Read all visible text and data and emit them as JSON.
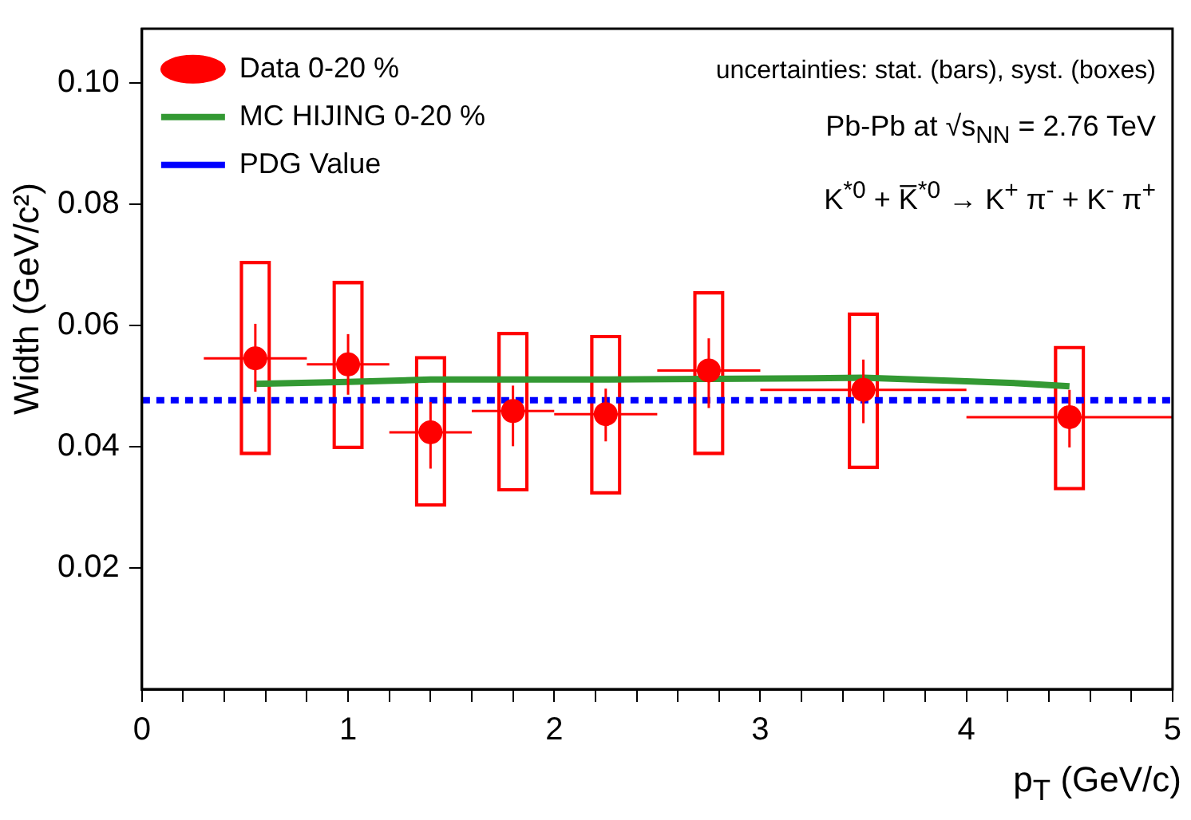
{
  "chart_data": {
    "type": "scatter",
    "xlabel": "p$_{T}$ (GeV/c)",
    "ylabel": "Width (GeV/c²)",
    "annotations": [
      "uncertainties: stat. (bars), syst. (boxes)",
      "Pb-Pb at √s$_{NN}$ = 2.76 TeV",
      "K$^{*0}$ + K̅$^{*0}$ → K$^{+}$ π$^{-}$ + K$^{-}$ π$^{+}$"
    ],
    "xlim": [
      0,
      5
    ],
    "ylim": [
      0,
      0.109
    ],
    "xticks": [
      0,
      {
        "value": 0.2,
        "label": null
      },
      {
        "value": 0.4,
        "label": null
      },
      {
        "value": 0.6,
        "label": null
      },
      {
        "value": 0.8,
        "label": null
      },
      1,
      {
        "value": 1.2,
        "label": null
      },
      {
        "value": 1.4,
        "label": null
      },
      {
        "value": 1.6,
        "label": null
      },
      {
        "value": 1.8,
        "label": null
      },
      2,
      {
        "value": 2.2,
        "label": null
      },
      {
        "value": 2.4,
        "label": null
      },
      {
        "value": 2.6,
        "label": null
      },
      {
        "value": 2.8,
        "label": null
      },
      3,
      {
        "value": 3.2,
        "label": null
      },
      {
        "value": 3.4,
        "label": null
      },
      {
        "value": 3.6,
        "label": null
      },
      {
        "value": 3.8,
        "label": null
      },
      4,
      {
        "value": 4.2,
        "label": null
      },
      {
        "value": 4.4,
        "label": null
      },
      {
        "value": 4.6,
        "label": null
      },
      {
        "value": 4.8,
        "label": null
      },
      5
    ],
    "yticks": [
      0.02,
      0.04,
      0.06,
      0.08,
      {
        "value": 0.1,
        "label": "0.10"
      }
    ],
    "legend": "top left",
    "grid": false,
    "series": [
      {
        "type": "bar",
        "color": "#ff0000",
        "x": [
          0.55,
          1.0,
          1.4,
          1.8,
          2.25,
          2.75,
          3.5,
          4.5
        ],
        "base": [
          0.0387,
          0.0397,
          0.0302,
          0.0327,
          0.0322,
          0.0387,
          0.0364,
          0.0329
        ],
        "values": [
          0.0319,
          0.0276,
          0.0247,
          0.0262,
          0.0262,
          0.0269,
          0.0257,
          0.0237
        ]
      },
      {
        "name": "Data 0-20 %",
        "color": "#ff0000",
        "marker": "circle",
        "x": [
          0.55,
          1.0,
          1.4,
          1.8,
          2.25,
          2.75,
          3.5,
          4.5
        ],
        "values": [
          0.0546,
          0.0536,
          0.0424,
          0.0459,
          0.0454,
          0.0526,
          0.0494,
          0.0449
        ],
        "errors": [
          [
            0.0491,
            0.0603
          ],
          [
            0.0486,
            0.0586
          ],
          [
            0.0364,
            0.0474
          ],
          [
            0.0401,
            0.0501
          ],
          [
            0.0409,
            0.0496
          ],
          [
            0.0464,
            0.0579
          ],
          [
            0.0439,
            0.0544
          ],
          [
            0.0399,
            0.0494
          ]
        ],
        "xerrors": [
          [
            0.3,
            0.8
          ],
          [
            0.8,
            1.2
          ],
          [
            1.2,
            1.6
          ],
          [
            1.6,
            2.0
          ],
          [
            2.0,
            2.5
          ],
          [
            2.5,
            3.0
          ],
          [
            3.0,
            4.0
          ],
          [
            4.0,
            5.0
          ]
        ]
      },
      {
        "name": "MC HIJING 0-20 %",
        "type": "line",
        "color": "#339933",
        "line_style": "solid",
        "x": [
          0.55,
          1.0,
          1.4,
          1.8,
          2.25,
          2.75,
          3.25,
          3.5,
          3.75,
          4.0,
          4.25,
          4.5
        ],
        "values": [
          0.0504,
          0.0507,
          0.0511,
          0.0511,
          0.0511,
          0.0512,
          0.0513,
          0.0514,
          0.0511,
          0.0508,
          0.0505,
          0.05
        ]
      },
      {
        "name": "PDG Value",
        "type": "line",
        "color": "#0000ff",
        "line_style": "dotted",
        "x": [
          0,
          5
        ],
        "values": [
          0.0477,
          0.0477
        ]
      }
    ]
  }
}
